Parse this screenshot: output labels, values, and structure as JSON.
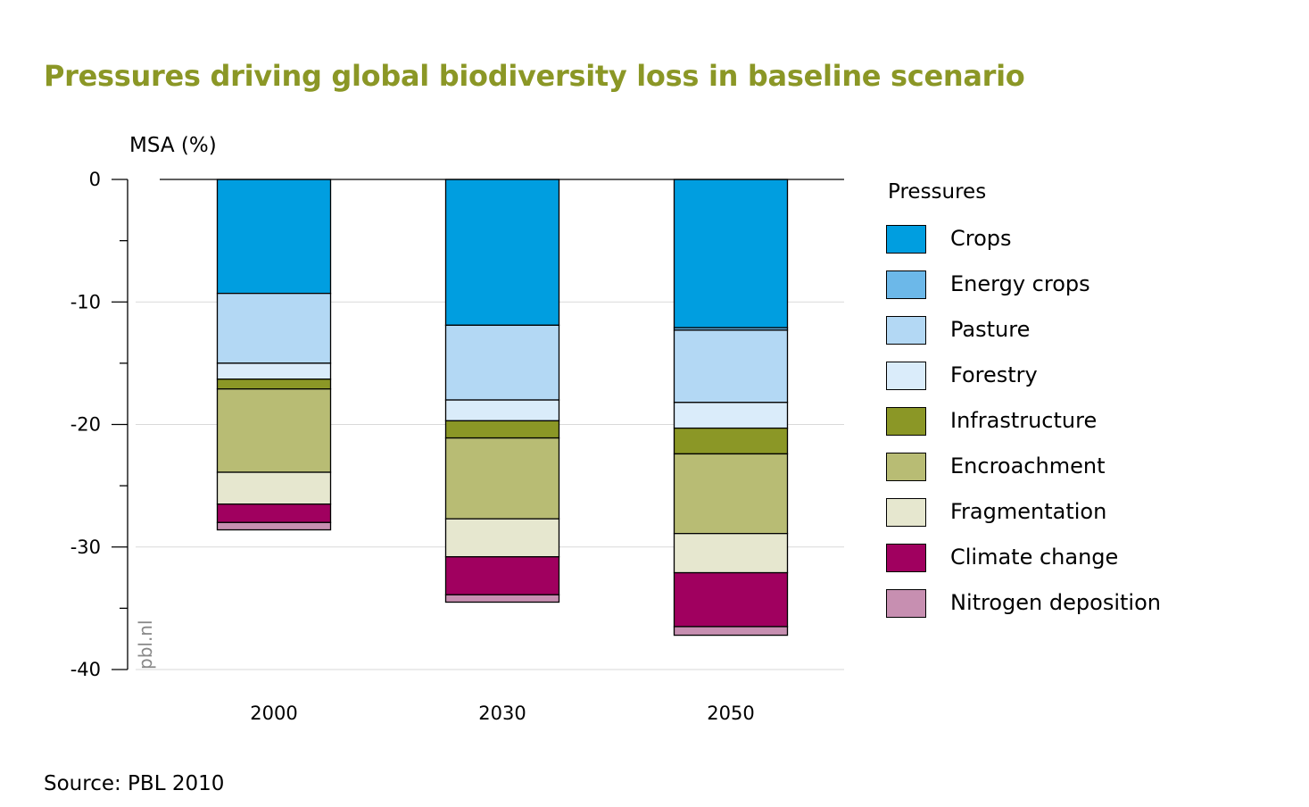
{
  "chart_data": {
    "type": "bar",
    "stacked": true,
    "title": "Pressures driving global biodiversity loss in baseline scenario",
    "ylabel": "MSA (%)",
    "xlabel": "",
    "ylim": [
      -40,
      0
    ],
    "yticks": [
      "0",
      "-10",
      "-20",
      "-30",
      "-40"
    ],
    "yticks_values": [
      0,
      -10,
      -20,
      -30,
      -40
    ],
    "grid": true,
    "legend_title": "Pressures",
    "legend_position": "right",
    "categories": [
      "2000",
      "2030",
      "2050"
    ],
    "series": [
      {
        "name": "Crops",
        "color": "#009ee0",
        "values": [
          -9.3,
          -11.9,
          -12.1
        ]
      },
      {
        "name": "Energy crops",
        "color": "#6cb8e9",
        "values": [
          0,
          0,
          -0.2
        ]
      },
      {
        "name": "Pasture",
        "color": "#b3d8f4",
        "values": [
          -5.7,
          -6.1,
          -5.9
        ]
      },
      {
        "name": "Forestry",
        "color": "#daecfa",
        "values": [
          -1.3,
          -1.7,
          -2.1
        ]
      },
      {
        "name": "Infrastructure",
        "color": "#8b9726",
        "values": [
          -0.8,
          -1.4,
          -2.1
        ]
      },
      {
        "name": "Encroachment",
        "color": "#b8bc74",
        "values": [
          -6.8,
          -6.6,
          -6.5
        ]
      },
      {
        "name": "Fragmentation",
        "color": "#e6e7cf",
        "values": [
          -2.6,
          -3.1,
          -3.2
        ]
      },
      {
        "name": "Climate change",
        "color": "#a0005f",
        "values": [
          -1.5,
          -3.1,
          -4.4
        ]
      },
      {
        "name": "Nitrogen deposition",
        "color": "#c78fb1",
        "values": [
          -0.6,
          -0.6,
          -0.7
        ]
      }
    ]
  },
  "watermark": "pbl.nl",
  "source": "Source: PBL 2010"
}
